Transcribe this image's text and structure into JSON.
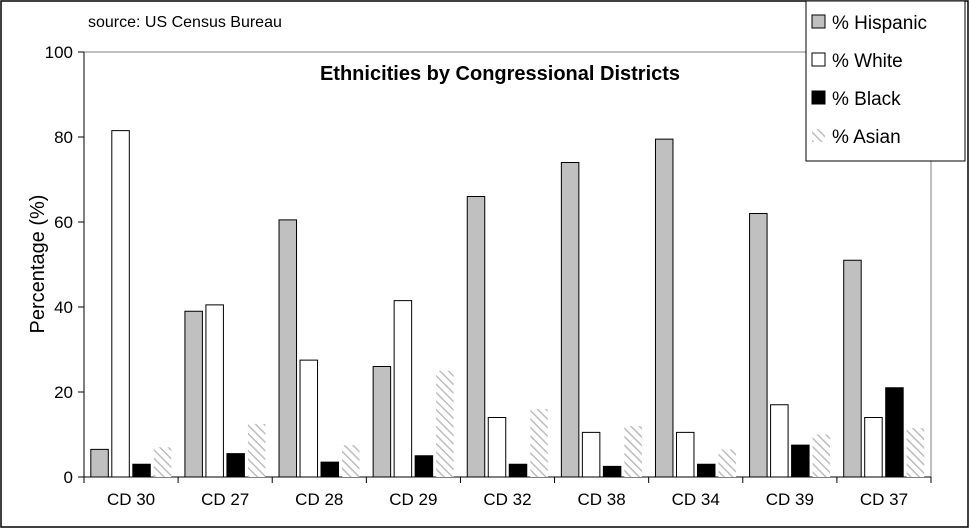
{
  "chart_data": {
    "type": "bar",
    "title": "Ethnicities by Congressional Districts",
    "source": "source: US Census Bureau",
    "xlabel": "",
    "ylabel": "Percentage (%)",
    "ylim": [
      0,
      100
    ],
    "yticks": [
      0,
      20,
      40,
      60,
      80,
      100
    ],
    "grid": false,
    "legend_position": "top-right",
    "categories": [
      "CD 30",
      "CD 27",
      "CD 28",
      "CD 29",
      "CD 32",
      "CD 38",
      "CD 34",
      "CD 39",
      "CD 37"
    ],
    "series": [
      {
        "name": "% Hispanic",
        "color": "#c0c0c0",
        "pattern": "solid",
        "values": [
          6.5,
          39,
          60.5,
          26,
          66,
          74,
          79.5,
          62,
          51
        ]
      },
      {
        "name": "% White",
        "color": "#ffffff",
        "pattern": "solid",
        "values": [
          81.5,
          40.5,
          27.5,
          41.5,
          14,
          10.5,
          10.5,
          17,
          14
        ]
      },
      {
        "name": "% Black",
        "color": "#000000",
        "pattern": "solid",
        "values": [
          3,
          5.5,
          3.5,
          5,
          3,
          2.5,
          3,
          7.5,
          21
        ]
      },
      {
        "name": "% Asian",
        "color": "#d0d0d0",
        "pattern": "diagonal-stripes",
        "values": [
          7,
          12.5,
          7.5,
          25,
          16,
          12,
          6.5,
          10,
          11.5
        ]
      }
    ]
  }
}
